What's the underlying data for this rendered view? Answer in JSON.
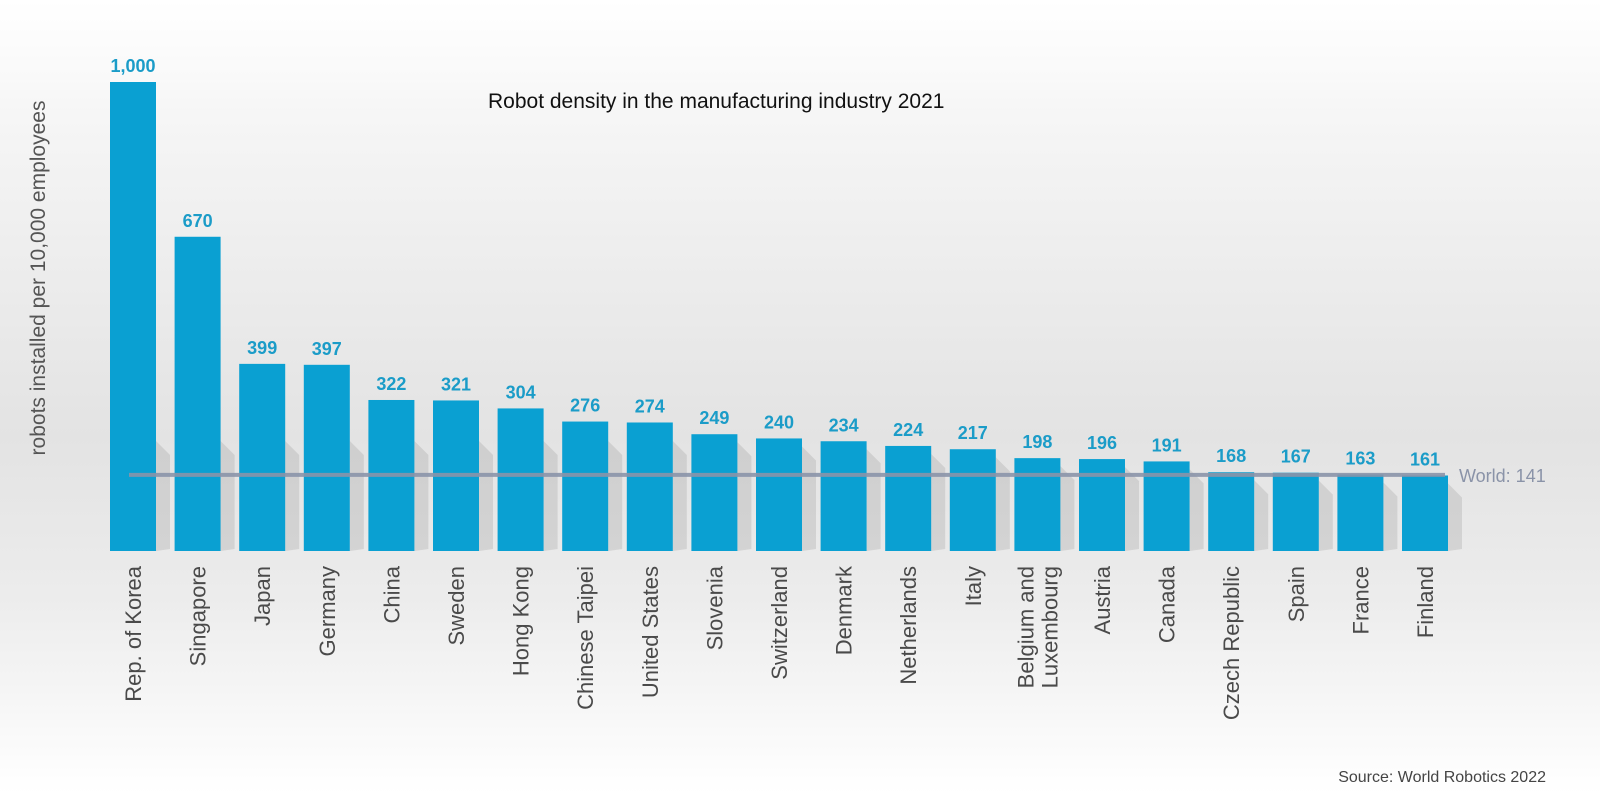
{
  "chart_data": {
    "type": "bar",
    "title": "Robot density in the manufacturing industry 2021",
    "ylabel": "robots installed per 10,000 employees",
    "xlabel": "",
    "ylim": [
      0,
      1000
    ],
    "categories": [
      "Rep. of Korea",
      "Singapore",
      "Japan",
      "Germany",
      "China",
      "Sweden",
      "Hong Kong",
      "Chinese Taipei",
      "United States",
      "Slovenia",
      "Switzerland",
      "Denmark",
      "Netherlands",
      "Italy",
      "Belgium and\nLuxembourg",
      "Austria",
      "Canada",
      "Czech Republic",
      "Spain",
      "France",
      "Finland"
    ],
    "values": [
      1000,
      670,
      399,
      397,
      322,
      321,
      304,
      276,
      274,
      249,
      240,
      234,
      224,
      217,
      198,
      196,
      191,
      168,
      167,
      163,
      161
    ],
    "value_labels": [
      "1,000",
      "670",
      "399",
      "397",
      "322",
      "321",
      "304",
      "276",
      "274",
      "249",
      "240",
      "234",
      "224",
      "217",
      "198",
      "196",
      "191",
      "168",
      "167",
      "163",
      "161"
    ],
    "reference_line": {
      "label": "World: 141",
      "value": 141
    },
    "source": "Source: World Robotics 2022",
    "colors": {
      "bar": "#0aa0d2",
      "value_label": "#1b9cc8",
      "reference_line": "#8a93a8",
      "category_label": "#4a4a4a"
    },
    "grid": false
  }
}
